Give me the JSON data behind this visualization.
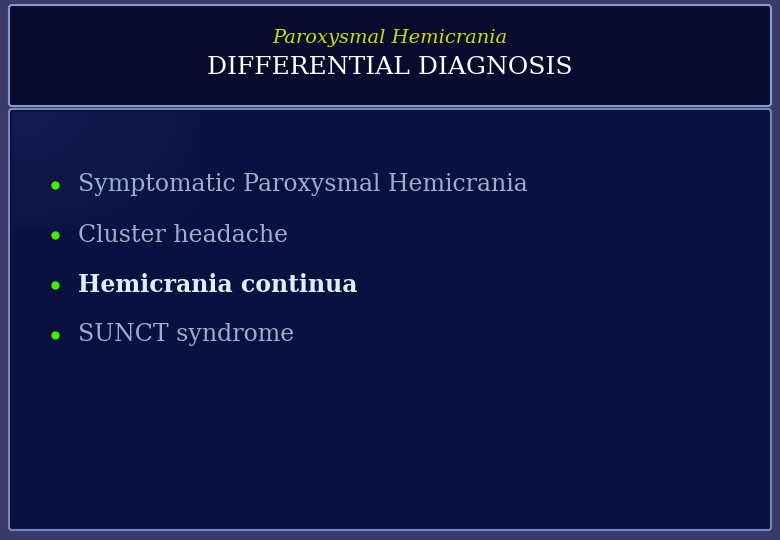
{
  "outer_bg": "#3a3a6a",
  "title_box_bg": "#0a0a2e",
  "title_box_border": "#8899cc",
  "content_box_bg": "#0a1040",
  "content_box_border": "#7788bb",
  "title_line1": "Paroxysmal Hemicrania",
  "title_line1_color": "#ccdd00",
  "title_line1_fontsize": 14,
  "title_line2": "DIFFERENTIAL DIAGNOSIS",
  "title_line2_color": "#ffffff",
  "title_line2_fontsize": 18,
  "bullet_color": "#44ee00",
  "bullet_items": [
    {
      "text": "Symptomatic Paroxysmal Hemicrania",
      "color": "#9ab0cc",
      "bold": false,
      "fontsize": 17
    },
    {
      "text": "Cluster headache",
      "color": "#9ab0cc",
      "bold": false,
      "fontsize": 17
    },
    {
      "text": "Hemicrania continua",
      "color": "#ddeeff",
      "bold": true,
      "fontsize": 17
    },
    {
      "text": "SUNCT syndrome",
      "color": "#9ab0cc",
      "bold": false,
      "fontsize": 17
    }
  ],
  "fig_width": 7.8,
  "fig_height": 5.4,
  "dpi": 100
}
